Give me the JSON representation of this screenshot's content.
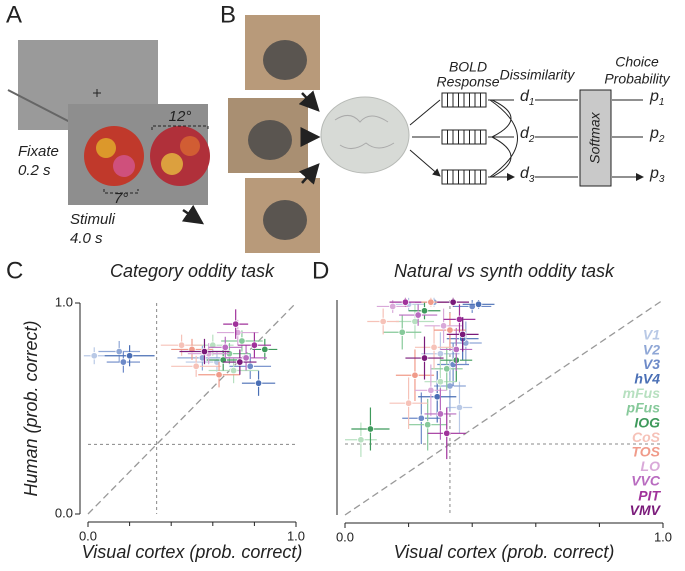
{
  "panel_labels": [
    "A",
    "B",
    "C",
    "D"
  ],
  "panel_a": {
    "fixate": "Fixate",
    "fixate_time": "0.2 s",
    "stimuli": "Stimuli",
    "stimuli_time": "4.0 s",
    "size_large": "12°",
    "size_small": "7°"
  },
  "panel_b": {
    "bold": "BOLD",
    "response": "Response",
    "dissimilarity": "Dissimilarity",
    "choice": "Choice",
    "probability": "Probability",
    "softmax": "Softmax",
    "d": [
      {
        "symbol": "d",
        "index": "1"
      },
      {
        "symbol": "d",
        "index": "2"
      },
      {
        "symbol": "d",
        "index": "3"
      }
    ],
    "p": [
      {
        "symbol": "p",
        "index": "1"
      },
      {
        "symbol": "p",
        "index": "2"
      },
      {
        "symbol": "p",
        "index": "3"
      }
    ]
  },
  "chart_data": [
    {
      "type": "scatter",
      "title": "Category oddity task",
      "x_label": "Visual cortex (prob. correct)",
      "y_label": "Human (prob. correct)",
      "xlim": [
        0,
        1
      ],
      "ylim": [
        0,
        1
      ],
      "xticks": [
        {
          "value": 0,
          "label": "0.0"
        },
        {
          "value": 1,
          "label": "1.0"
        }
      ],
      "x_minor_ticks": [
        0.2,
        0.4,
        0.6,
        0.8
      ],
      "yticks": [
        {
          "value": 0,
          "label": "0.0"
        },
        {
          "value": 1,
          "label": "1.0"
        }
      ],
      "chance": 0.33,
      "diagonal": true,
      "series": [
        {
          "color": "#b9c9e6",
          "x": [
            0.03,
            0.62
          ],
          "values": [
            0.75,
            0.72
          ],
          "xerr": [
            0.05,
            0.15
          ],
          "yerr": [
            0.04,
            0.05
          ]
        },
        {
          "color": "#8fa7d6",
          "x": [
            0.15,
            0.55
          ],
          "values": [
            0.77,
            0.74
          ],
          "xerr": [
            0.1,
            0.12
          ],
          "yerr": [
            0.05,
            0.06
          ]
        },
        {
          "color": "#6d8ac8",
          "x": [
            0.17,
            0.78
          ],
          "values": [
            0.72,
            0.7
          ],
          "xerr": [
            0.08,
            0.1
          ],
          "yerr": [
            0.05,
            0.06
          ]
        },
        {
          "color": "#4a6fb5",
          "x": [
            0.2,
            0.82
          ],
          "values": [
            0.75,
            0.62
          ],
          "xerr": [
            0.12,
            0.08
          ],
          "yerr": [
            0.05,
            0.06
          ]
        },
        {
          "color": "#b7e0c0",
          "x": [
            0.6,
            0.7
          ],
          "values": [
            0.8,
            0.68
          ],
          "xerr": [
            0.1,
            0.12
          ],
          "yerr": [
            0.05,
            0.06
          ]
        },
        {
          "color": "#86c99a",
          "x": [
            0.68,
            0.74
          ],
          "values": [
            0.76,
            0.82
          ],
          "xerr": [
            0.1,
            0.1
          ],
          "yerr": [
            0.05,
            0.05
          ]
        },
        {
          "color": "#3f9a5c",
          "x": [
            0.65,
            0.85
          ],
          "values": [
            0.73,
            0.78
          ],
          "xerr": [
            0.08,
            0.06
          ],
          "yerr": [
            0.05,
            0.05
          ]
        },
        {
          "color": "#f6c2b8",
          "x": [
            0.45,
            0.52
          ],
          "values": [
            0.8,
            0.7
          ],
          "xerr": [
            0.1,
            0.12
          ],
          "yerr": [
            0.05,
            0.05
          ]
        },
        {
          "color": "#f09b8a",
          "x": [
            0.5,
            0.63
          ],
          "values": [
            0.78,
            0.66
          ],
          "xerr": [
            0.1,
            0.1
          ],
          "yerr": [
            0.05,
            0.06
          ]
        },
        {
          "color": "#d9a9d9",
          "x": [
            0.72,
            0.58
          ],
          "values": [
            0.86,
            0.76
          ],
          "xerr": [
            0.1,
            0.1
          ],
          "yerr": [
            0.06,
            0.05
          ]
        },
        {
          "color": "#b96cc0",
          "x": [
            0.66,
            0.76
          ],
          "values": [
            0.79,
            0.74
          ],
          "xerr": [
            0.08,
            0.1
          ],
          "yerr": [
            0.05,
            0.06
          ]
        },
        {
          "color": "#a0329b",
          "x": [
            0.71,
            0.8
          ],
          "values": [
            0.9,
            0.8
          ],
          "xerr": [
            0.06,
            0.08
          ],
          "yerr": [
            0.07,
            0.06
          ]
        },
        {
          "color": "#7a1a7a",
          "x": [
            0.56,
            0.73
          ],
          "values": [
            0.77,
            0.72
          ],
          "xerr": [
            0.12,
            0.08
          ],
          "yerr": [
            0.06,
            0.06
          ]
        }
      ]
    },
    {
      "type": "scatter",
      "title": "Natural vs synth oddity task",
      "x_label": "Visual cortex (prob. correct)",
      "xlim": [
        0,
        1
      ],
      "ylim": [
        0,
        1
      ],
      "xticks": [
        {
          "value": 0,
          "label": "0.0"
        },
        {
          "value": 1,
          "label": "1.0"
        }
      ],
      "x_minor_ticks": [
        0.2,
        0.4,
        0.6,
        0.8
      ],
      "chance": 0.33,
      "diagonal": true,
      "series": [
        {
          "name": "V1",
          "color": "#b9c9e6",
          "x": [
            0.2,
            0.3,
            0.36
          ],
          "values": [
            0.98,
            0.75,
            0.5
          ],
          "xerr": [
            0.05,
            0.06,
            0.04
          ],
          "yerr": [
            0.03,
            0.1,
            0.12
          ]
        },
        {
          "name": "V2",
          "color": "#8fa7d6",
          "x": [
            0.28,
            0.38,
            0.33
          ],
          "values": [
            0.99,
            0.8,
            0.6
          ],
          "xerr": [
            0.06,
            0.05,
            0.05
          ],
          "yerr": [
            0.02,
            0.1,
            0.12
          ]
        },
        {
          "name": "V3",
          "color": "#6d8ac8",
          "x": [
            0.4,
            0.34,
            0.24
          ],
          "values": [
            0.97,
            0.7,
            0.45
          ],
          "xerr": [
            0.06,
            0.05,
            0.06
          ],
          "yerr": [
            0.03,
            0.1,
            0.12
          ]
        },
        {
          "name": "hV4",
          "color": "#4a6fb5",
          "x": [
            0.42,
            0.37,
            0.29
          ],
          "values": [
            0.98,
            0.82,
            0.55
          ],
          "xerr": [
            0.05,
            0.05,
            0.06
          ],
          "yerr": [
            0.02,
            0.1,
            0.12
          ]
        },
        {
          "name": "mFus",
          "color": "#b7e0c0",
          "x": [
            0.05,
            0.22,
            0.3
          ],
          "values": [
            0.35,
            0.9,
            0.62
          ],
          "xerr": [
            0.05,
            0.06,
            0.05
          ],
          "yerr": [
            0.08,
            0.08,
            0.12
          ]
        },
        {
          "name": "pFus",
          "color": "#86c99a",
          "x": [
            0.18,
            0.32,
            0.26
          ],
          "values": [
            0.85,
            0.68,
            0.42
          ],
          "xerr": [
            0.06,
            0.05,
            0.06
          ],
          "yerr": [
            0.08,
            0.1,
            0.12
          ]
        },
        {
          "name": "IOG",
          "color": "#3f9a5c",
          "x": [
            0.08,
            0.25,
            0.35
          ],
          "values": [
            0.4,
            0.95,
            0.72
          ],
          "xerr": [
            0.06,
            0.05,
            0.05
          ],
          "yerr": [
            0.1,
            0.04,
            0.1
          ]
        },
        {
          "name": "CoS",
          "color": "#f6c2b8",
          "x": [
            0.12,
            0.28,
            0.2
          ],
          "values": [
            0.9,
            0.78,
            0.52
          ],
          "xerr": [
            0.05,
            0.06,
            0.06
          ],
          "yerr": [
            0.06,
            0.1,
            0.12
          ]
        },
        {
          "name": "TOS",
          "color": "#f09b8a",
          "x": [
            0.27,
            0.33,
            0.22
          ],
          "values": [
            0.99,
            0.86,
            0.65
          ],
          "xerr": [
            0.05,
            0.05,
            0.06
          ],
          "yerr": [
            0.02,
            0.08,
            0.12
          ]
        },
        {
          "name": "LO",
          "color": "#d9a9d9",
          "x": [
            0.15,
            0.31,
            0.27
          ],
          "values": [
            0.97,
            0.88,
            0.58
          ],
          "xerr": [
            0.05,
            0.06,
            0.05
          ],
          "yerr": [
            0.03,
            0.08,
            0.12
          ]
        },
        {
          "name": "VVC",
          "color": "#b96cc0",
          "x": [
            0.23,
            0.35,
            0.3
          ],
          "values": [
            0.93,
            0.77,
            0.47
          ],
          "xerr": [
            0.06,
            0.05,
            0.05
          ],
          "yerr": [
            0.05,
            0.1,
            0.12
          ]
        },
        {
          "name": "PIT",
          "color": "#a0329b",
          "x": [
            0.19,
            0.36,
            0.32
          ],
          "values": [
            0.99,
            0.91,
            0.38
          ],
          "xerr": [
            0.05,
            0.05,
            0.06
          ],
          "yerr": [
            0.02,
            0.07,
            0.12
          ]
        },
        {
          "name": "VMV",
          "color": "#7a1a7a",
          "x": [
            0.34,
            0.37,
            0.25
          ],
          "values": [
            0.99,
            0.84,
            0.73
          ],
          "xerr": [
            0.05,
            0.05,
            0.06
          ],
          "yerr": [
            0.02,
            0.08,
            0.1
          ]
        }
      ]
    }
  ]
}
